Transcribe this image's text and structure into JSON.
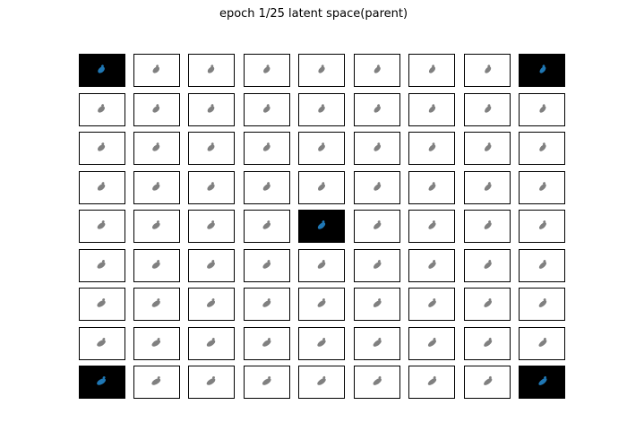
{
  "chart_data": {
    "type": "image-grid",
    "title": "epoch 1/25 latent space(parent)",
    "rows": 9,
    "cols": 9,
    "highlighted_cells": [
      [
        0,
        0
      ],
      [
        0,
        8
      ],
      [
        4,
        4
      ],
      [
        8,
        0
      ],
      [
        8,
        8
      ]
    ],
    "colors": {
      "highlight_background": "#000000",
      "highlight_shape": "#1f77b4",
      "normal_background": "#ffffff",
      "normal_shape": "#808080"
    }
  }
}
